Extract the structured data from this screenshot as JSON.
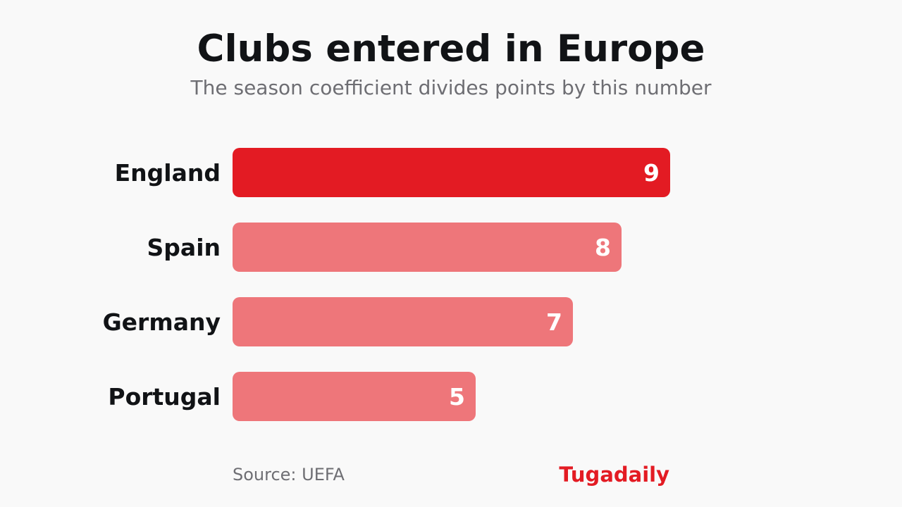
{
  "header": {
    "title": "Clubs entered in Europe",
    "subtitle": "The season coefficient divides points by this number"
  },
  "footer": {
    "source": "Source: UEFA",
    "brand": "Tugadaily"
  },
  "colors": {
    "highlight": "#e31b23",
    "bar": "#ee767a",
    "brand": "#e31b23",
    "value_text": "#ffffff"
  },
  "chart_data": {
    "type": "bar",
    "orientation": "horizontal",
    "categories": [
      "England",
      "Spain",
      "Germany",
      "Portugal"
    ],
    "values": [
      9,
      8,
      7,
      5
    ],
    "highlight_category": "England",
    "title": "Clubs entered in Europe",
    "subtitle": "The season coefficient divides points by this number",
    "xlabel": "",
    "ylabel": "",
    "xlim": [
      0,
      9
    ],
    "grid": false,
    "legend": "none"
  }
}
